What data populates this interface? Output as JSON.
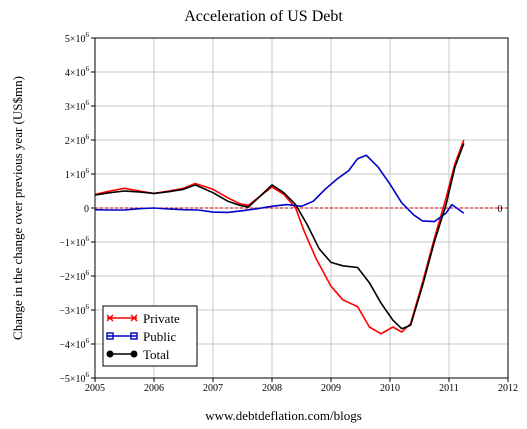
{
  "chart_data": {
    "type": "line",
    "title": "Acceleration of US Debt",
    "ylabel": "Change in the change over previous year (US$mn)",
    "xlabel": "",
    "source": "www.debtdeflation.com/blogs",
    "xlim": [
      2005,
      2012
    ],
    "ylim": [
      -5000000,
      5000000
    ],
    "grid": true,
    "legend_position": "bottom-left",
    "x_ticks": [
      "2005",
      "2006",
      "2007",
      "2008",
      "2009",
      "2010",
      "2011",
      "2012"
    ],
    "y_ticks": [
      {
        "value": 5000000,
        "mantissa": "5",
        "exp": "6"
      },
      {
        "value": 4000000,
        "mantissa": "4",
        "exp": "6"
      },
      {
        "value": 3000000,
        "mantissa": "3",
        "exp": "6"
      },
      {
        "value": 2000000,
        "mantissa": "2",
        "exp": "6"
      },
      {
        "value": 1000000,
        "mantissa": "1",
        "exp": "6"
      },
      {
        "value": 0,
        "mantissa": "0",
        "exp": ""
      },
      {
        "value": -1000000,
        "mantissa": "−1",
        "exp": "6"
      },
      {
        "value": -2000000,
        "mantissa": "−2",
        "exp": "6"
      },
      {
        "value": -3000000,
        "mantissa": "−3",
        "exp": "6"
      },
      {
        "value": -4000000,
        "mantissa": "−4",
        "exp": "6"
      },
      {
        "value": -5000000,
        "mantissa": "−5",
        "exp": "6"
      }
    ],
    "reference_line": {
      "y": 0,
      "label": "0",
      "color": "#cc0000"
    },
    "series": [
      {
        "name": "Private",
        "color": "#ff0000",
        "marker": "x",
        "x": [
          2005.0,
          2005.25,
          2005.5,
          2005.75,
          2006.0,
          2006.25,
          2006.5,
          2006.7,
          2007.0,
          2007.25,
          2007.45,
          2007.6,
          2007.8,
          2008.0,
          2008.2,
          2008.4,
          2008.55,
          2008.75,
          2009.0,
          2009.2,
          2009.45,
          2009.65,
          2009.85,
          2010.05,
          2010.2,
          2010.35,
          2010.55,
          2010.75,
          2010.95,
          2011.1,
          2011.25
        ],
        "y": [
          400000,
          500000,
          580000,
          500000,
          430000,
          500000,
          580000,
          720000,
          550000,
          300000,
          130000,
          80000,
          350000,
          620000,
          400000,
          0,
          -700000,
          -1500000,
          -2300000,
          -2700000,
          -2900000,
          -3500000,
          -3700000,
          -3500000,
          -3650000,
          -3400000,
          -2200000,
          -900000,
          300000,
          1300000,
          2000000
        ]
      },
      {
        "name": "Public",
        "color": "#0000cc",
        "marker": "square",
        "x": [
          2005.0,
          2005.25,
          2005.5,
          2005.75,
          2006.0,
          2006.25,
          2006.5,
          2006.75,
          2007.0,
          2007.25,
          2007.5,
          2007.75,
          2008.0,
          2008.25,
          2008.5,
          2008.7,
          2008.9,
          2009.1,
          2009.3,
          2009.45,
          2009.6,
          2009.8,
          2010.0,
          2010.2,
          2010.4,
          2010.55,
          2010.75,
          2010.95,
          2011.05,
          2011.25
        ],
        "y": [
          -50000,
          -60000,
          -60000,
          -20000,
          0,
          -30000,
          -50000,
          -60000,
          -120000,
          -130000,
          -80000,
          -20000,
          50000,
          100000,
          50000,
          200000,
          550000,
          850000,
          1100000,
          1450000,
          1550000,
          1200000,
          700000,
          150000,
          -200000,
          -380000,
          -400000,
          -150000,
          100000,
          -150000
        ]
      },
      {
        "name": "Total",
        "color": "#000000",
        "marker": "dot",
        "x": [
          2005.0,
          2005.25,
          2005.5,
          2005.75,
          2006.0,
          2006.25,
          2006.5,
          2006.7,
          2007.0,
          2007.25,
          2007.45,
          2007.6,
          2007.8,
          2008.0,
          2008.2,
          2008.4,
          2008.6,
          2008.8,
          2009.0,
          2009.2,
          2009.45,
          2009.65,
          2009.85,
          2010.05,
          2010.2,
          2010.35,
          2010.55,
          2010.75,
          2010.95,
          2011.1,
          2011.25
        ],
        "y": [
          380000,
          450000,
          500000,
          470000,
          430000,
          480000,
          550000,
          680000,
          450000,
          200000,
          80000,
          30000,
          350000,
          680000,
          450000,
          100000,
          -500000,
          -1200000,
          -1600000,
          -1700000,
          -1750000,
          -2200000,
          -2800000,
          -3300000,
          -3550000,
          -3450000,
          -2300000,
          -1000000,
          100000,
          1200000,
          1900000
        ]
      }
    ]
  }
}
